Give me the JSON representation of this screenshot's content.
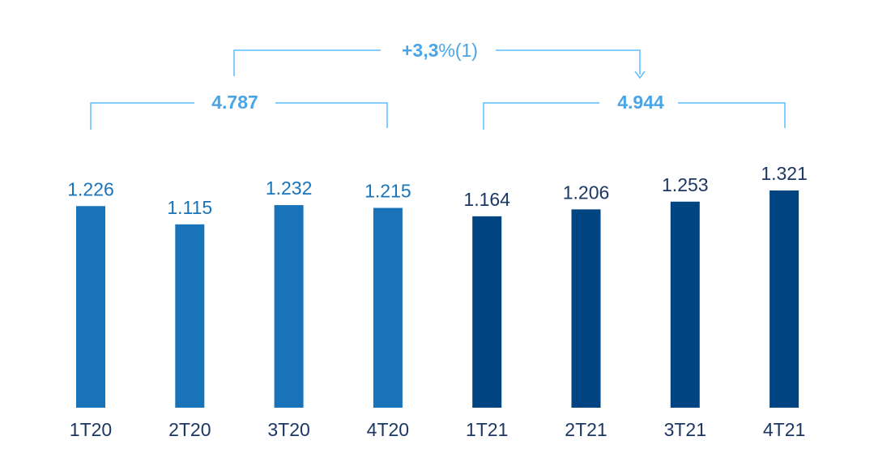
{
  "chart_data": {
    "type": "bar",
    "categories": [
      "1T20",
      "2T20",
      "3T20",
      "4T20",
      "1T21",
      "2T21",
      "3T21",
      "4T21"
    ],
    "values": [
      1226,
      1115,
      1232,
      1215,
      1164,
      1206,
      1253,
      1321
    ],
    "value_labels": [
      "1.226",
      "1.115",
      "1.232",
      "1.215",
      "1.164",
      "1.206",
      "1.253",
      "1.321"
    ],
    "ylim": [
      0,
      1321
    ],
    "groups": [
      {
        "total_label": "4.787",
        "indices": [
          0,
          1,
          2,
          3
        ],
        "color": "#1973b8"
      },
      {
        "total_label": "4.944",
        "indices": [
          4,
          5,
          6,
          7
        ],
        "color": "#004481"
      }
    ],
    "growth": {
      "value": "+3,3",
      "unit": "%",
      "note": "(1)"
    },
    "colors": {
      "bar_2020": "#1973b8",
      "bar_2021": "#004481",
      "bracket": "#5bbeff",
      "accent_text": "#49a5e6",
      "label_text": "#1c3764"
    }
  }
}
